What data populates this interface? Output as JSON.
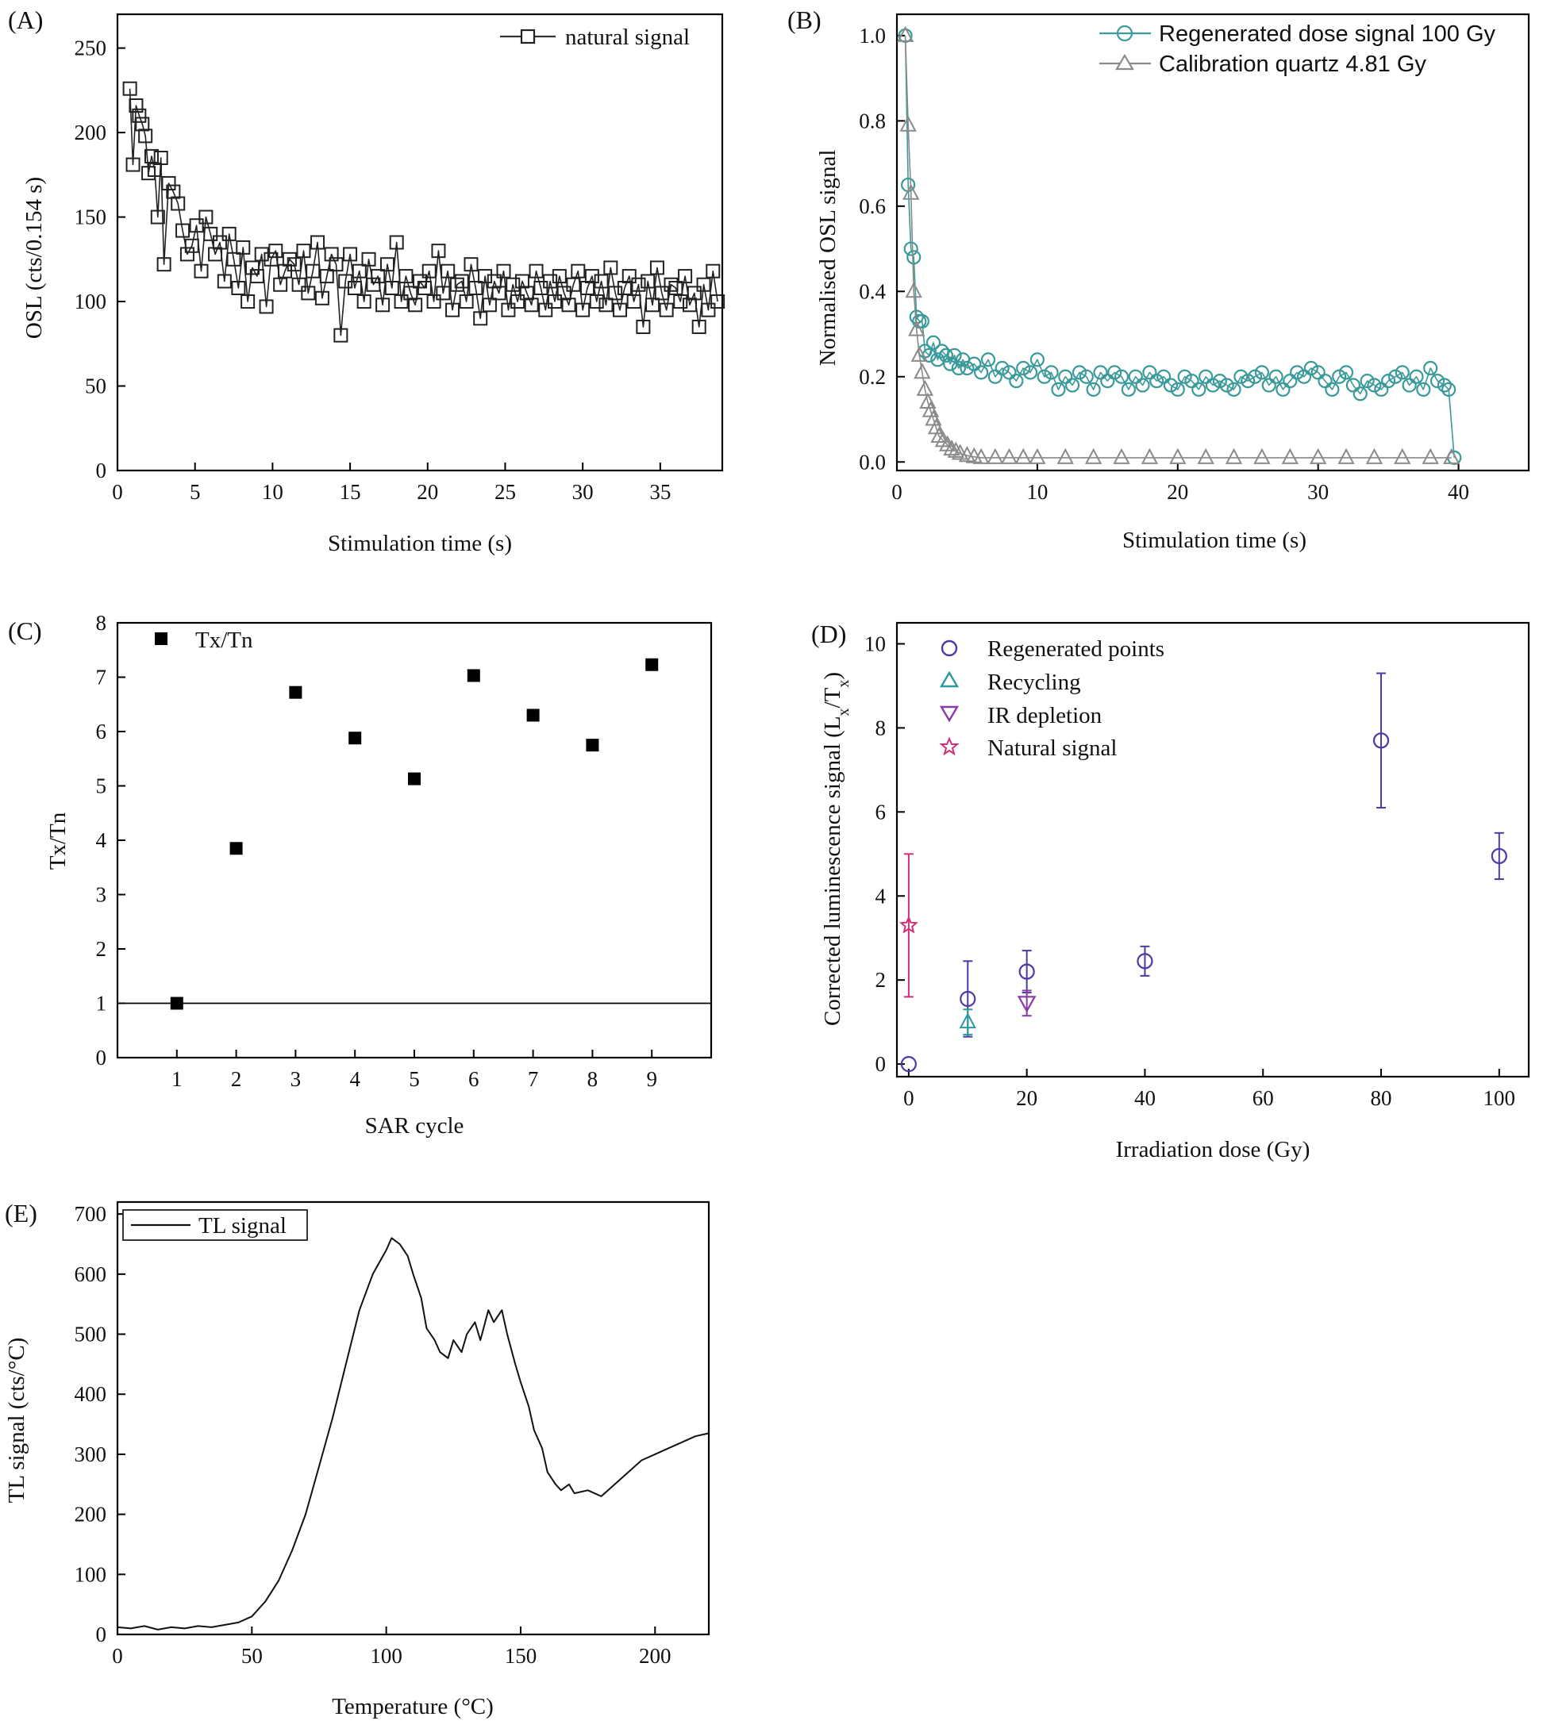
{
  "chart_data": [
    {
      "panel": "(A)",
      "type": "scatter",
      "xlabel": "Stimulation time (s)",
      "ylabel": "OSL (cts/0.154 s)",
      "xlim": [
        0,
        39
      ],
      "ylim": [
        0,
        270
      ],
      "xticks": [
        "0",
        "5",
        "10",
        "15",
        "20",
        "25",
        "30",
        "35"
      ],
      "yticks": [
        "0",
        "50",
        "100",
        "150",
        "200",
        "250"
      ],
      "legend": "top-right",
      "series": [
        {
          "name": "natural signal",
          "marker": "open-square",
          "color": "#222222",
          "note_sampled": "approximate shape: fast decay from ~225 to ~115 then noisy plateau ~100-110",
          "x": [
            0.8,
            1.0,
            1.2,
            1.4,
            1.6,
            1.8,
            2.0,
            2.2,
            2.4,
            2.6,
            2.8,
            3.0,
            3.3,
            3.6,
            3.9,
            4.2,
            4.5,
            4.8,
            5.1,
            5.4,
            5.7,
            6.0,
            6.3,
            6.6,
            6.9,
            7.2,
            7.5,
            7.8,
            8.1,
            8.4,
            8.7,
            9.0,
            9.3,
            9.6,
            9.9,
            10.2,
            10.5,
            10.8,
            11.1,
            11.4,
            11.7,
            12.0,
            12.3,
            12.6,
            12.9,
            13.2,
            13.5,
            13.8,
            14.1,
            14.4,
            14.7,
            15.0,
            15.3,
            15.6,
            15.9,
            16.2,
            16.5,
            16.8,
            17.1,
            17.4,
            17.7,
            18.0,
            18.3,
            18.6,
            18.9,
            19.2,
            19.5,
            19.8,
            20.1,
            20.4,
            20.7,
            21.0,
            21.3,
            21.6,
            21.9,
            22.2,
            22.5,
            22.8,
            23.1,
            23.4,
            23.7,
            24.0,
            24.3,
            24.6,
            24.9,
            25.2,
            25.5,
            25.8,
            26.1,
            26.4,
            26.7,
            27.0,
            27.3,
            27.6,
            27.9,
            28.2,
            28.5,
            28.8,
            29.1,
            29.4,
            29.7,
            30.0,
            30.3,
            30.6,
            30.9,
            31.2,
            31.5,
            31.8,
            32.1,
            32.4,
            32.7,
            33.0,
            33.3,
            33.6,
            33.9,
            34.2,
            34.5,
            34.8,
            35.1,
            35.4,
            35.7,
            36.0,
            36.3,
            36.6,
            36.9,
            37.2,
            37.5,
            37.8,
            38.1,
            38.4,
            38.7
          ],
          "y": [
            226,
            181,
            216,
            210,
            205,
            198,
            176,
            186,
            178,
            150,
            185,
            122,
            170,
            165,
            158,
            142,
            128,
            133,
            145,
            118,
            150,
            140,
            128,
            135,
            112,
            140,
            125,
            108,
            132,
            100,
            120,
            115,
            128,
            97,
            125,
            130,
            110,
            118,
            125,
            122,
            110,
            130,
            105,
            118,
            135,
            102,
            115,
            128,
            122,
            80,
            112,
            128,
            108,
            118,
            100,
            125,
            110,
            115,
            98,
            122,
            108,
            135,
            100,
            115,
            105,
            98,
            112,
            108,
            118,
            100,
            130,
            105,
            118,
            95,
            110,
            112,
            100,
            122,
            108,
            90,
            115,
            98,
            112,
            105,
            118,
            95,
            110,
            100,
            112,
            105,
            98,
            118,
            108,
            95,
            112,
            100,
            115,
            105,
            98,
            110,
            118,
            95,
            108,
            115,
            100,
            112,
            98,
            120,
            105,
            95,
            108,
            115,
            100,
            110,
            85,
            112,
            98,
            120,
            105,
            95,
            110,
            108,
            100,
            115,
            98,
            105,
            85,
            110,
            95,
            118,
            100
          ]
        }
      ]
    },
    {
      "panel": "(B)",
      "type": "line",
      "xlabel": "Stimulation time (s)",
      "ylabel": "Normalised OSL signal",
      "xlim": [
        0,
        45
      ],
      "ylim": [
        -0.02,
        1.05
      ],
      "xticks": [
        "0",
        "10",
        "20",
        "30",
        "40"
      ],
      "yticks": [
        "0.0",
        "0.2",
        "0.4",
        "0.6",
        "0.8",
        "1.0"
      ],
      "legend": "top-right",
      "series": [
        {
          "name": "Regenerated dose signal 100 Gy",
          "marker": "open-circle",
          "color": "#3a9a9a",
          "x": [
            0.6,
            0.8,
            1.0,
            1.2,
            1.4,
            1.6,
            1.8,
            2.0,
            2.3,
            2.6,
            2.9,
            3.2,
            3.5,
            3.8,
            4.1,
            4.4,
            4.7,
            5.0,
            5.5,
            6.0,
            6.5,
            7.0,
            7.5,
            8.0,
            8.5,
            9.0,
            9.5,
            10.0,
            10.5,
            11.0,
            11.5,
            12.0,
            12.5,
            13.0,
            13.5,
            14.0,
            14.5,
            15.0,
            15.5,
            16.0,
            16.5,
            17.0,
            17.5,
            18.0,
            18.5,
            19.0,
            19.5,
            20.0,
            20.5,
            21.0,
            21.5,
            22.0,
            22.5,
            23.0,
            23.5,
            24.0,
            24.5,
            25.0,
            25.5,
            26.0,
            26.5,
            27.0,
            27.5,
            28.0,
            28.5,
            29.0,
            29.5,
            30.0,
            30.5,
            31.0,
            31.5,
            32.0,
            32.5,
            33.0,
            33.5,
            34.0,
            34.5,
            35.0,
            35.5,
            36.0,
            36.5,
            37.0,
            37.5,
            38.0,
            38.5,
            39.0,
            39.3,
            39.7
          ],
          "y": [
            1.0,
            0.65,
            0.5,
            0.48,
            0.34,
            0.33,
            0.33,
            0.26,
            0.25,
            0.28,
            0.24,
            0.26,
            0.25,
            0.23,
            0.25,
            0.22,
            0.24,
            0.22,
            0.23,
            0.21,
            0.24,
            0.2,
            0.22,
            0.21,
            0.19,
            0.22,
            0.21,
            0.24,
            0.2,
            0.21,
            0.17,
            0.2,
            0.18,
            0.21,
            0.2,
            0.17,
            0.21,
            0.19,
            0.21,
            0.2,
            0.17,
            0.2,
            0.18,
            0.21,
            0.19,
            0.2,
            0.18,
            0.17,
            0.2,
            0.19,
            0.17,
            0.2,
            0.18,
            0.19,
            0.18,
            0.17,
            0.2,
            0.19,
            0.2,
            0.21,
            0.18,
            0.2,
            0.17,
            0.19,
            0.21,
            0.2,
            0.22,
            0.21,
            0.19,
            0.17,
            0.2,
            0.21,
            0.18,
            0.16,
            0.19,
            0.18,
            0.17,
            0.19,
            0.2,
            0.21,
            0.18,
            0.2,
            0.17,
            0.22,
            0.19,
            0.18,
            0.17,
            0.01
          ]
        },
        {
          "name": "Calibration quartz 4.81 Gy",
          "marker": "open-triangle",
          "color": "#8a8a8a",
          "x": [
            0.6,
            0.8,
            1.0,
            1.2,
            1.4,
            1.6,
            1.8,
            2.0,
            2.2,
            2.4,
            2.6,
            2.8,
            3.0,
            3.3,
            3.6,
            3.9,
            4.2,
            4.5,
            5.0,
            5.5,
            6.0,
            7.0,
            8.0,
            9.0,
            10.0,
            12.0,
            14.0,
            16.0,
            18.0,
            20.0,
            22.0,
            24.0,
            26.0,
            28.0,
            30.0,
            32.0,
            34.0,
            36.0,
            38.0,
            39.5
          ],
          "y": [
            1.0,
            0.79,
            0.63,
            0.4,
            0.31,
            0.25,
            0.21,
            0.17,
            0.14,
            0.12,
            0.1,
            0.08,
            0.06,
            0.05,
            0.04,
            0.03,
            0.025,
            0.02,
            0.015,
            0.012,
            0.01,
            0.01,
            0.01,
            0.01,
            0.01,
            0.01,
            0.01,
            0.01,
            0.01,
            0.01,
            0.01,
            0.01,
            0.01,
            0.01,
            0.01,
            0.01,
            0.01,
            0.01,
            0.01,
            0.01
          ]
        }
      ]
    },
    {
      "panel": "(C)",
      "type": "scatter",
      "xlabel": "SAR cycle",
      "ylabel": "Tx/Tn",
      "xlim": [
        0,
        10
      ],
      "ylim": [
        0,
        8
      ],
      "xticks": [
        "1",
        "2",
        "3",
        "4",
        "5",
        "6",
        "7",
        "8",
        "9"
      ],
      "yticks": [
        "0",
        "1",
        "2",
        "3",
        "4",
        "5",
        "6",
        "7",
        "8"
      ],
      "legend": "top-left",
      "reference_line": 1,
      "series": [
        {
          "name": "Tx/Tn",
          "marker": "filled-square",
          "color": "#000000",
          "x": [
            1,
            2,
            3,
            4,
            5,
            6,
            7,
            8,
            9
          ],
          "y": [
            1.0,
            3.85,
            6.72,
            5.88,
            5.13,
            7.03,
            6.3,
            5.75,
            7.23
          ]
        }
      ]
    },
    {
      "panel": "(D)",
      "type": "scatter",
      "xlabel": "Irradiation dose (Gy)",
      "ylabel_main": "Corrected luminescence signal (L",
      "ylabel_sub1": "x",
      "ylabel_mid": "/T",
      "ylabel_sub2": "x",
      "ylabel_end": ")",
      "xlim": [
        -2,
        105
      ],
      "ylim": [
        -0.3,
        10.5
      ],
      "xticks": [
        "0",
        "20",
        "40",
        "60",
        "80",
        "100"
      ],
      "yticks": [
        "0",
        "2",
        "4",
        "6",
        "8",
        "10"
      ],
      "legend": "top-left",
      "series": [
        {
          "name": "Regenerated points",
          "marker": "open-circle",
          "color": "#4a3aa8",
          "x": [
            0,
            10,
            20,
            40,
            80,
            100
          ],
          "y": [
            0.0,
            1.55,
            2.2,
            2.45,
            7.7,
            4.95
          ],
          "err": [
            0,
            0.9,
            0.5,
            0.35,
            1.6,
            0.55
          ]
        },
        {
          "name": "Recycling",
          "marker": "open-triangle-up",
          "color": "#2a9aa0",
          "x": [
            10
          ],
          "y": [
            1.0
          ],
          "err": [
            0.3
          ]
        },
        {
          "name": "IR depletion",
          "marker": "open-triangle-down",
          "color": "#8a3aa8",
          "x": [
            20
          ],
          "y": [
            1.45
          ],
          "err": [
            0.3
          ]
        },
        {
          "name": "Natural signal",
          "marker": "open-star",
          "color": "#d0307a",
          "x": [
            0
          ],
          "y": [
            3.3
          ],
          "err": [
            1.7
          ]
        }
      ]
    },
    {
      "panel": "(E)",
      "type": "line",
      "xlabel": "Temperature (°C)",
      "ylabel": "TL signal (cts/°C)",
      "xlim": [
        0,
        220
      ],
      "ylim": [
        0,
        720
      ],
      "xticks": [
        "0",
        "50",
        "100",
        "150",
        "200"
      ],
      "yticks": [
        "0",
        "100",
        "200",
        "300",
        "400",
        "500",
        "600",
        "700"
      ],
      "legend": "top-left",
      "series": [
        {
          "name": "TL signal",
          "color": "#111111",
          "x": [
            0,
            5,
            10,
            15,
            20,
            25,
            30,
            35,
            40,
            45,
            50,
            55,
            60,
            65,
            70,
            75,
            80,
            85,
            90,
            95,
            100,
            102,
            105,
            108,
            110,
            113,
            115,
            118,
            120,
            123,
            125,
            128,
            130,
            133,
            135,
            138,
            140,
            143,
            145,
            148,
            150,
            153,
            155,
            158,
            160,
            163,
            165,
            168,
            170,
            175,
            180,
            185,
            190,
            195,
            200,
            205,
            210,
            215,
            220
          ],
          "y": [
            12,
            10,
            14,
            8,
            12,
            10,
            14,
            12,
            16,
            20,
            30,
            55,
            90,
            140,
            200,
            280,
            360,
            450,
            540,
            600,
            640,
            660,
            650,
            630,
            600,
            560,
            510,
            490,
            470,
            460,
            490,
            470,
            500,
            520,
            490,
            540,
            520,
            540,
            500,
            450,
            420,
            380,
            340,
            310,
            270,
            250,
            240,
            250,
            235,
            240,
            230,
            250,
            270,
            290,
            300,
            310,
            320,
            330,
            335
          ]
        }
      ]
    }
  ]
}
